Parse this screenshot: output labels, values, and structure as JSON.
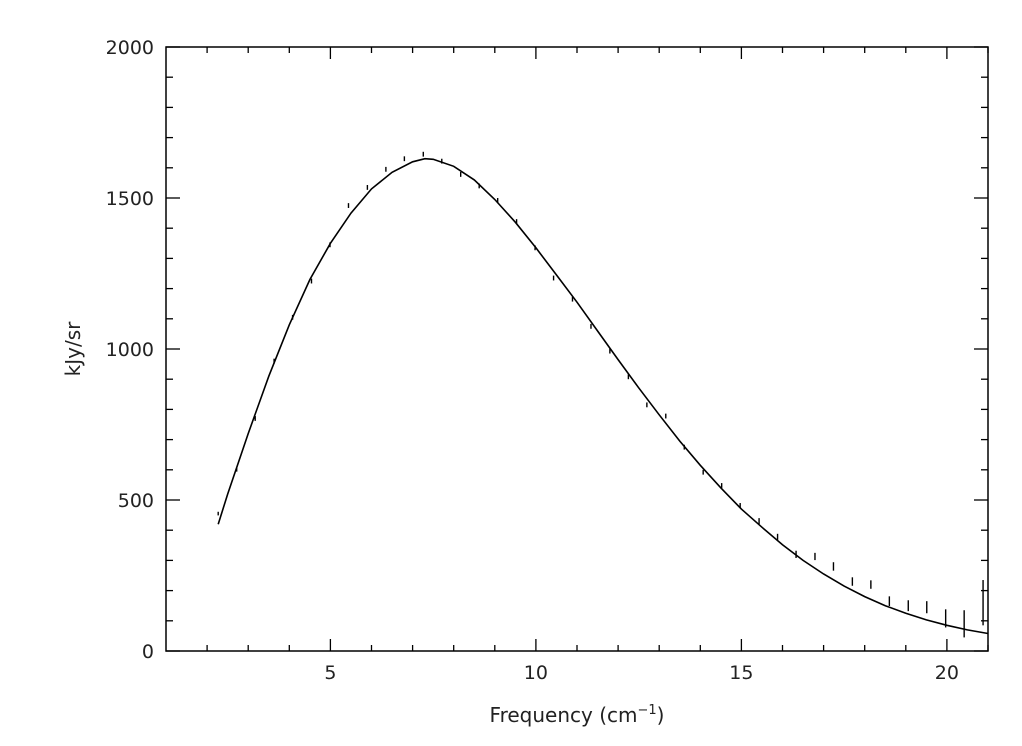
{
  "chart_data": {
    "type": "line",
    "xlabel": "Frequency (cm",
    "xlabel_sup": "−1",
    "xlabel_end": ")",
    "ylabel": "kJy/sr",
    "xlim": [
      1,
      21
    ],
    "ylim": [
      0,
      2000
    ],
    "xticks": [
      5,
      10,
      15,
      20
    ],
    "yticks": [
      0,
      500,
      1000,
      1500,
      2000
    ],
    "xtick_labels": [
      "5",
      "10",
      "15",
      "20"
    ],
    "ytick_labels": [
      "0",
      "500",
      "1000",
      "1500",
      "2000"
    ],
    "grid": false,
    "series": [
      {
        "kind": "model-curve",
        "x": [
          2.27,
          2.5,
          3.0,
          3.5,
          4.0,
          4.5,
          5.0,
          5.5,
          6.0,
          6.5,
          7.0,
          7.3,
          7.5,
          8.0,
          8.5,
          9.0,
          9.5,
          10.0,
          10.5,
          11.0,
          11.5,
          12.0,
          12.5,
          13.0,
          13.5,
          14.0,
          14.5,
          15.0,
          15.5,
          16.0,
          16.5,
          17.0,
          17.5,
          18.0,
          18.5,
          19.0,
          19.5,
          20.0,
          20.5,
          21.0
        ],
        "y": [
          420,
          520,
          720,
          910,
          1080,
          1230,
          1350,
          1450,
          1530,
          1585,
          1620,
          1630,
          1628,
          1605,
          1560,
          1495,
          1420,
          1335,
          1245,
          1155,
          1060,
          965,
          872,
          782,
          695,
          615,
          540,
          470,
          410,
          352,
          300,
          255,
          215,
          180,
          150,
          125,
          103,
          85,
          70,
          58
        ]
      },
      {
        "kind": "measurements",
        "x": [
          2.27,
          2.72,
          3.17,
          3.63,
          4.08,
          4.54,
          4.99,
          5.44,
          5.9,
          6.35,
          6.8,
          7.26,
          7.71,
          8.17,
          8.62,
          9.07,
          9.53,
          9.98,
          10.43,
          10.89,
          11.34,
          11.8,
          12.25,
          12.7,
          13.16,
          13.61,
          14.07,
          14.52,
          14.97,
          15.43,
          15.88,
          16.33,
          16.79,
          17.24,
          17.7,
          18.15,
          18.6,
          19.06,
          19.51,
          19.97,
          20.42,
          20.88
        ],
        "y": [
          455,
          600,
          770,
          960,
          1105,
          1225,
          1345,
          1475,
          1535,
          1595,
          1630,
          1645,
          1622,
          1578,
          1540,
          1492,
          1422,
          1335,
          1235,
          1165,
          1075,
          993,
          908,
          815,
          778,
          675,
          592,
          548,
          482,
          430,
          378,
          320,
          313,
          280,
          230,
          220,
          165,
          150,
          145,
          108,
          90,
          160
        ],
        "err": [
          6,
          6,
          8,
          8,
          8,
          8,
          8,
          8,
          8,
          8,
          8,
          8,
          8,
          8,
          8,
          8,
          8,
          8,
          8,
          8,
          8,
          8,
          8,
          8,
          8,
          8,
          8,
          8,
          8,
          10,
          10,
          12,
          12,
          14,
          14,
          14,
          16,
          18,
          20,
          30,
          45,
          75
        ]
      }
    ]
  }
}
